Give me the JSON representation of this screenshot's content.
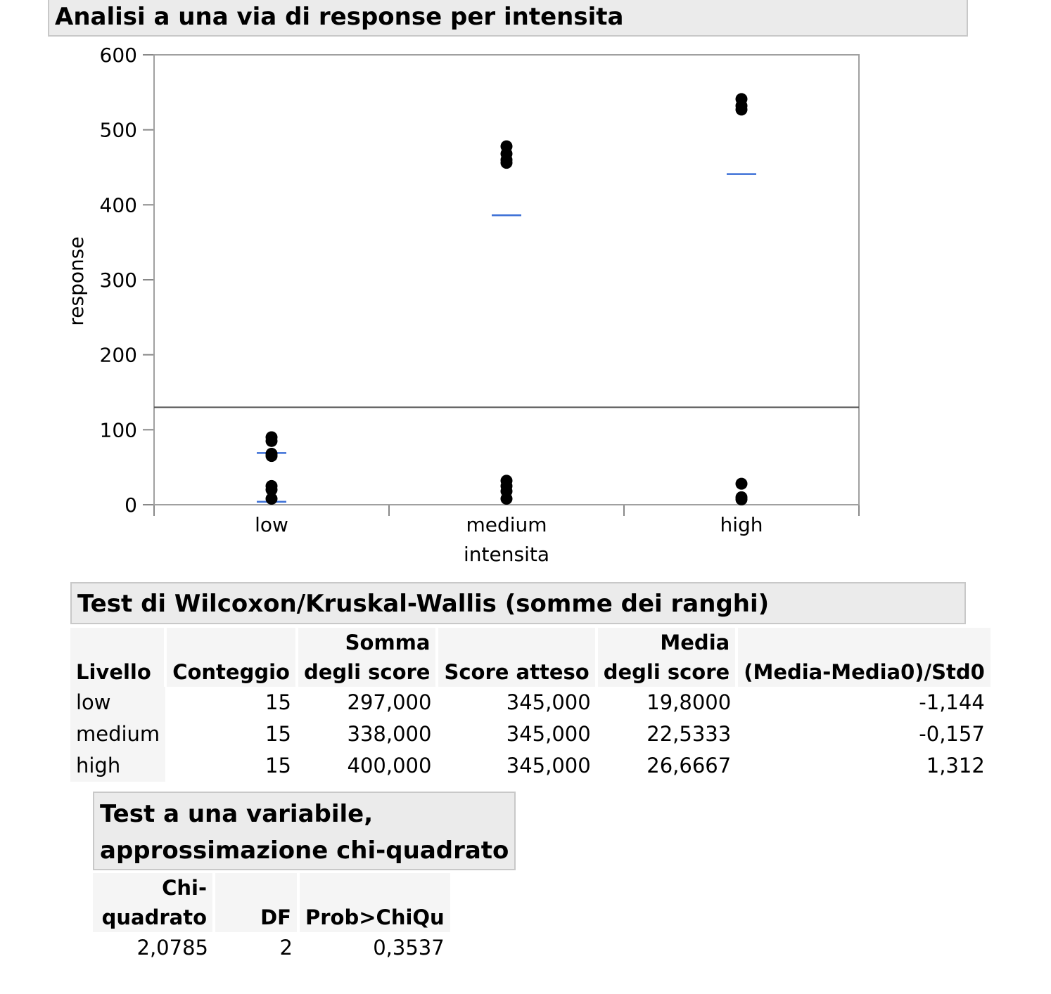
{
  "main_title": "Analisi a una via di response per intensita",
  "chart_data": {
    "type": "scatter",
    "title": "Analisi a una via di response per intensita",
    "xlabel": "intensita",
    "ylabel": "response",
    "categories": [
      "low",
      "medium",
      "high"
    ],
    "ylim": [
      0,
      600
    ],
    "yticks": [
      0,
      100,
      200,
      300,
      400,
      500,
      600
    ],
    "reference_line": 130,
    "points": {
      "low": [
        90,
        85,
        68,
        65,
        25,
        20,
        8
      ],
      "medium": [
        478,
        468,
        460,
        456,
        32,
        25,
        18,
        8
      ],
      "high": [
        541,
        532,
        527,
        28,
        10,
        7
      ]
    },
    "group_means": [
      {
        "category": "low",
        "values": [
          69,
          4
        ]
      },
      {
        "category": "medium",
        "values": [
          386
        ]
      },
      {
        "category": "high",
        "values": [
          441
        ]
      }
    ],
    "point_color": "#000000",
    "mean_color": "#3b6fd6"
  },
  "wilcoxon": {
    "title": "Test di Wilcoxon/Kruskal-Wallis (somme dei ranghi)",
    "headers": {
      "level": "Livello",
      "count": "Conteggio",
      "score_sum_1": "Somma",
      "score_sum_2": "degli score",
      "expected": "Score atteso",
      "score_mean_1": "Media",
      "score_mean_2": "degli score",
      "std": "(Media-Media0)/Std0"
    },
    "rows": [
      {
        "level": "low",
        "count": "15",
        "sum": "297,000",
        "expected": "345,000",
        "mean": "19,8000",
        "std": "-1,144"
      },
      {
        "level": "medium",
        "count": "15",
        "sum": "338,000",
        "expected": "345,000",
        "mean": "22,5333",
        "std": "-0,157"
      },
      {
        "level": "high",
        "count": "15",
        "sum": "400,000",
        "expected": "345,000",
        "mean": "26,6667",
        "std": "1,312"
      }
    ]
  },
  "chi_test": {
    "title_line1": "Test a una variabile,",
    "title_line2": "approssimazione chi-quadrato",
    "headers": {
      "chi_1": "Chi-",
      "chi_2": "quadrato",
      "df": "DF",
      "prob": "Prob>ChiQu"
    },
    "values": {
      "chi": "2,0785",
      "df": "2",
      "prob": "0,3537"
    }
  }
}
